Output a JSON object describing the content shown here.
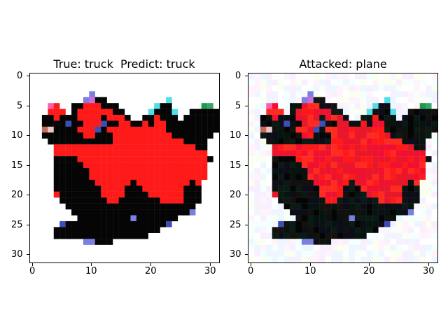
{
  "figure": {
    "left_panel": {
      "title": "True: truck  Predict: truck",
      "x_ticks": [
        "0",
        "10",
        "20",
        "30"
      ],
      "y_ticks": [
        "0",
        "5",
        "10",
        "15",
        "20",
        "25",
        "30"
      ]
    },
    "right_panel": {
      "title": "Attacked: plane",
      "x_ticks": [
        "0",
        "10",
        "20",
        "30"
      ],
      "y_ticks": [
        "0",
        "5",
        "10",
        "15",
        "20",
        "25",
        "30"
      ]
    }
  },
  "colors": {
    "truck_red": "#ff1a1a",
    "tire_black": "#050505",
    "background": "#ffffff",
    "noise_tint": "#f4ffff"
  }
}
